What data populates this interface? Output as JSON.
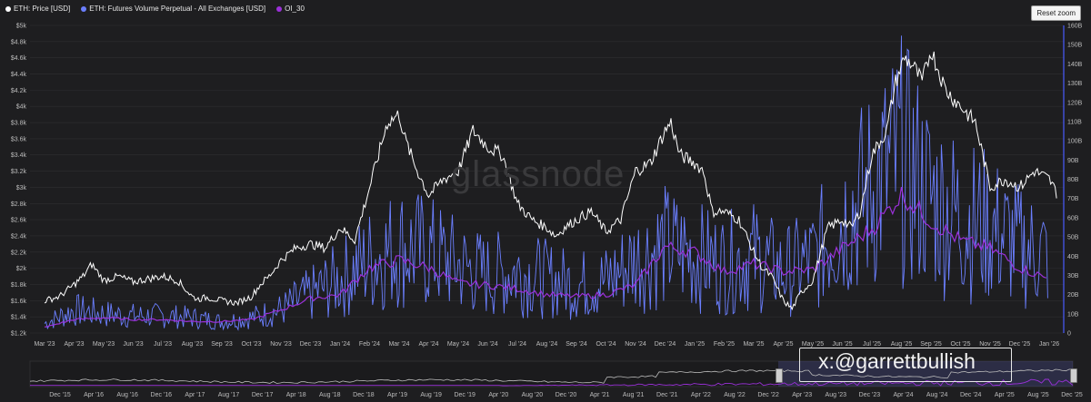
{
  "legend": [
    {
      "label": "ETH: Price [USD]",
      "color": "#ffffff"
    },
    {
      "label": "ETH: Futures Volume Perpetual - All Exchanges [USD]",
      "color": "#6b7fff"
    },
    {
      "label": "OI_30",
      "color": "#9b30d9"
    }
  ],
  "reset_zoom": "Reset zoom",
  "brand": "glassnode",
  "watermark": "x:@garrettbullish",
  "colors": {
    "background": "#1e1e20",
    "price": "#ffffff",
    "volume": "#6b7fff",
    "oi": "#9b30d9",
    "grid": "#2e2e31"
  },
  "chart_data": {
    "type": "line",
    "x_labels": [
      "Mar '23",
      "Apr '23",
      "May '23",
      "Jun '23",
      "Jul '23",
      "Aug '23",
      "Sep '23",
      "Oct '23",
      "Nov '23",
      "Dec '23",
      "Jan '24",
      "Feb '24",
      "Mar '24",
      "Apr '24",
      "May '24",
      "Jun '24",
      "Jul '24",
      "Aug '24",
      "Sep '24",
      "Oct '24",
      "Nov '24",
      "Dec '24",
      "Jan '25",
      "Feb '25",
      "Mar '25",
      "Apr '25",
      "May '25",
      "Jun '25",
      "Jul '25",
      "Aug '25",
      "Sep '25",
      "Oct '25",
      "Nov '25",
      "Dec '25",
      "Jan '26"
    ],
    "y_left_ticks": [
      "$1.2k",
      "$1.4k",
      "$1.6k",
      "$1.8k",
      "$2k",
      "$2.2k",
      "$2.4k",
      "$2.6k",
      "$2.8k",
      "$3k",
      "$3.2k",
      "$3.4k",
      "$3.6k",
      "$3.8k",
      "$4k",
      "$4.2k",
      "$4.4k",
      "$4.6k",
      "$4.8k",
      "$5k"
    ],
    "y_right_ticks": [
      "0",
      "10B",
      "20B",
      "30B",
      "40B",
      "50B",
      "60B",
      "70B",
      "80B",
      "90B",
      "100B",
      "110B",
      "120B",
      "130B",
      "140B",
      "150B",
      "160B"
    ],
    "ylim_left": [
      1200,
      5000
    ],
    "ylim_right": [
      0,
      160
    ],
    "series": [
      {
        "name": "ETH: Price [USD]",
        "axis": "left",
        "x": [
          0,
          0.5,
          1,
          1.3,
          1.6,
          2,
          2.5,
          3,
          3.5,
          4,
          4.5,
          5,
          5.2,
          5.5,
          6,
          6.5,
          7,
          7.3,
          7.6,
          8,
          8.5,
          9,
          9.5,
          10,
          10.5,
          11,
          11.3,
          11.6,
          12,
          12.2,
          12.5,
          13,
          13.5,
          14,
          14.5,
          15,
          15.5,
          16,
          16.5,
          17,
          17.3,
          17.6,
          18,
          18.5,
          19,
          19.5,
          20,
          20.5,
          21,
          21.2,
          21.5,
          22,
          22.3,
          22.6,
          23,
          23.5,
          24,
          24.3,
          24.6,
          25,
          25.3,
          25.6,
          26,
          26.5,
          27,
          27.3,
          27.6,
          28,
          28.5,
          28.8,
          29.1,
          29.4,
          29.7,
          30,
          30.5,
          31,
          31.5,
          32,
          32.5,
          33,
          33.5,
          34,
          34.3
        ],
        "y": [
          1600,
          1650,
          1800,
          1900,
          2050,
          1850,
          1900,
          1830,
          1870,
          1900,
          1850,
          1650,
          1620,
          1640,
          1600,
          1570,
          1650,
          1800,
          1900,
          2100,
          2250,
          2300,
          2250,
          2500,
          2350,
          3000,
          3400,
          3800,
          3900,
          3600,
          3300,
          2900,
          3100,
          3200,
          3700,
          3500,
          3400,
          2800,
          2600,
          2500,
          2400,
          2500,
          2600,
          2700,
          2450,
          2600,
          3200,
          3300,
          3700,
          3800,
          3400,
          3300,
          3200,
          2700,
          2700,
          2600,
          2200,
          2000,
          1900,
          1600,
          1500,
          1700,
          1850,
          2500,
          2600,
          2500,
          2700,
          3400,
          3700,
          4300,
          4600,
          4500,
          4300,
          4700,
          4200,
          4000,
          3800,
          3000,
          3100,
          3000,
          3200,
          3100,
          2900
        ]
      },
      {
        "name": "ETH: Futures Volume Perpetual - All Exchanges [USD]",
        "axis": "right",
        "x": [
          0,
          1,
          2,
          3,
          4,
          5,
          6,
          7,
          8,
          9,
          10,
          11,
          12,
          13,
          14,
          15,
          16,
          17,
          18,
          19,
          20,
          21,
          22,
          23,
          24,
          25,
          26,
          27,
          28,
          29,
          30,
          31,
          32,
          33,
          34
        ],
        "y": [
          5,
          12,
          10,
          9,
          9,
          8,
          6,
          8,
          12,
          20,
          28,
          38,
          45,
          42,
          35,
          30,
          32,
          28,
          25,
          27,
          38,
          45,
          40,
          36,
          40,
          32,
          38,
          60,
          75,
          90,
          70,
          60,
          55,
          45,
          40
        ]
      },
      {
        "name": "OI_30",
        "axis": "right",
        "x": [
          0,
          1,
          2,
          3,
          4,
          5,
          6,
          7,
          8,
          9,
          10,
          11,
          12,
          13,
          14,
          15,
          16,
          17,
          18,
          19,
          20,
          21,
          22,
          23,
          24,
          25,
          26,
          27,
          28,
          29,
          30,
          31,
          32,
          33,
          34
        ],
        "y": [
          3,
          7,
          8,
          7,
          7,
          6,
          6,
          7,
          12,
          18,
          20,
          34,
          38,
          34,
          26,
          25,
          23,
          20,
          19,
          20,
          25,
          45,
          42,
          32,
          36,
          32,
          33,
          44,
          54,
          72,
          58,
          48,
          44,
          34,
          28
        ]
      }
    ],
    "navigator_labels": [
      "Dec '15",
      "Apr '16",
      "Aug '16",
      "Dec '16",
      "Apr '17",
      "Aug '17",
      "Dec '17",
      "Apr '18",
      "Aug '18",
      "Dec '18",
      "Apr '19",
      "Aug '19",
      "Dec '19",
      "Apr '20",
      "Aug '20",
      "Dec '20",
      "Apr '21",
      "Aug '21",
      "Dec '21",
      "Apr '22",
      "Aug '22",
      "Dec '22",
      "Apr '23",
      "Aug '23",
      "Dec '23",
      "Apr '24",
      "Aug '24",
      "Dec '24",
      "Apr '25",
      "Aug '25",
      "Dec '25"
    ]
  }
}
